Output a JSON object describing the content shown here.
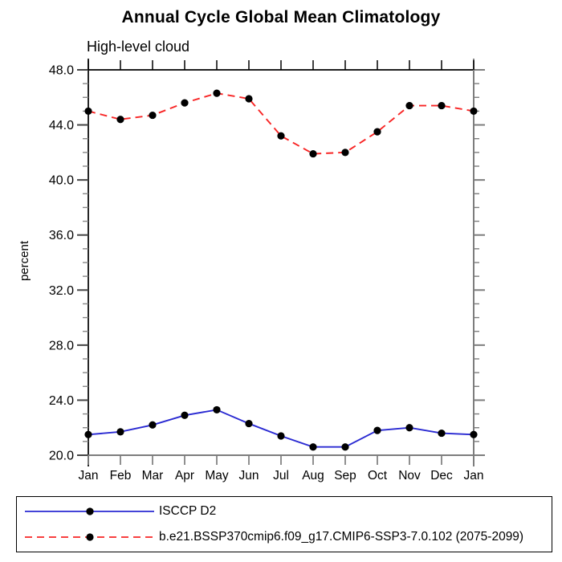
{
  "title": "Annual Cycle Global Mean Climatology",
  "subtitle": "High-level cloud",
  "ylabel": "percent",
  "colors": {
    "series1_line": "#2a2ad2",
    "series2_line": "#f82525",
    "marker": "#000000",
    "axis_black": "#000000",
    "axis_gray": "#7d7d7d",
    "tick_major": "#444444",
    "tick_minor": "#888888",
    "text": "#000000"
  },
  "chart_data": {
    "type": "line",
    "title": "Annual Cycle Global Mean Climatology",
    "subtitle": "High-level cloud",
    "ylabel": "percent",
    "xlabel": "",
    "x_categories": [
      "Jan",
      "Feb",
      "Mar",
      "Apr",
      "May",
      "Jun",
      "Jul",
      "Aug",
      "Sep",
      "Oct",
      "Nov",
      "Dec",
      "Jan"
    ],
    "ylim": [
      20.0,
      48.0
    ],
    "ytick_interval": 4.0,
    "yminor_interval": 1.0,
    "ytick_labels": [
      "20.0",
      "24.0",
      "28.0",
      "32.0",
      "36.0",
      "40.0",
      "44.0",
      "48.0"
    ],
    "grid": false,
    "legend_position": "bottom",
    "series": [
      {
        "name": "ISCCP D2",
        "line_style": "solid",
        "line_color": "#2a2ad2",
        "marker": "filled-circle",
        "marker_color": "#000000",
        "values": [
          21.5,
          21.7,
          22.2,
          22.9,
          23.3,
          22.3,
          21.4,
          20.6,
          20.6,
          21.8,
          22.0,
          21.6,
          21.5
        ]
      },
      {
        "name": "b.e21.BSSP370cmip6.f09_g17.CMIP6-SSP3-7.0.102 (2075-2099)",
        "line_style": "dashed",
        "line_color": "#f82525",
        "marker": "filled-circle",
        "marker_color": "#000000",
        "values": [
          45.0,
          44.4,
          44.7,
          45.6,
          46.3,
          45.9,
          43.2,
          41.9,
          42.0,
          43.5,
          45.4,
          45.4,
          45.0
        ]
      }
    ]
  }
}
